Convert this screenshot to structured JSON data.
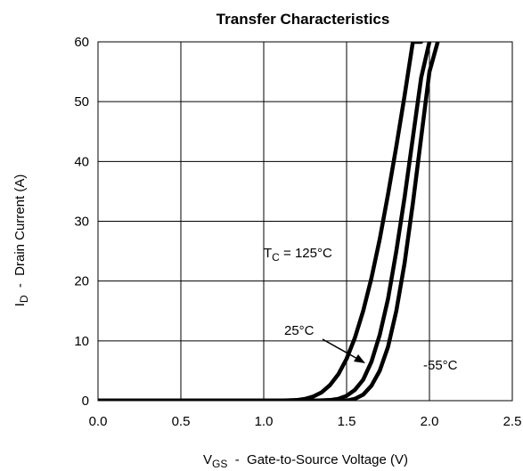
{
  "chart_data": {
    "type": "line",
    "title": "Transfer Characteristics",
    "xlabel": {
      "main": "V",
      "sub": "GS",
      "rest": "  -  Gate-to-Source Voltage (V)"
    },
    "ylabel": {
      "main": "I",
      "sub": "D",
      "rest": "  -  Drain Current (A)"
    },
    "xlim": [
      0,
      2.5
    ],
    "ylim": [
      0,
      60
    ],
    "xticks": [
      "0.0",
      "0.5",
      "1.0",
      "1.5",
      "2.0",
      "2.5"
    ],
    "yticks": [
      "0",
      "10",
      "20",
      "30",
      "40",
      "50",
      "60"
    ],
    "grid": true,
    "series": [
      {
        "name": "T_C = 125°C",
        "x": [
          0,
          1.1,
          1.2,
          1.25,
          1.3,
          1.35,
          1.4,
          1.45,
          1.5,
          1.55,
          1.6,
          1.65,
          1.7,
          1.75,
          1.8,
          1.85,
          1.9,
          1.95
        ],
        "y": [
          0,
          0,
          0.1,
          0.3,
          0.7,
          1.4,
          2.6,
          4.4,
          7,
          10.5,
          15,
          20.5,
          27,
          34.5,
          42.5,
          51,
          60,
          60
        ]
      },
      {
        "name": "25°C",
        "x": [
          0,
          1.3,
          1.4,
          1.45,
          1.5,
          1.55,
          1.6,
          1.65,
          1.7,
          1.75,
          1.8,
          1.85,
          1.9,
          1.95,
          2.0
        ],
        "y": [
          0,
          0,
          0.1,
          0.3,
          0.8,
          1.8,
          3.5,
          6.5,
          11,
          17,
          25,
          34,
          44,
          54,
          60
        ]
      },
      {
        "name": "-55°C",
        "x": [
          0,
          1.5,
          1.55,
          1.6,
          1.65,
          1.7,
          1.75,
          1.8,
          1.85,
          1.9,
          1.95,
          2.0,
          2.05
        ],
        "y": [
          0,
          0,
          0.3,
          1,
          2.5,
          5,
          9,
          15,
          23,
          33,
          44,
          55,
          60
        ]
      }
    ],
    "annotations": {
      "t125": {
        "main": "T",
        "sub": "C",
        "rest": " = 125°C"
      },
      "t25": "25°C",
      "tm55": "-55°C"
    },
    "line_color": "#000000"
  }
}
